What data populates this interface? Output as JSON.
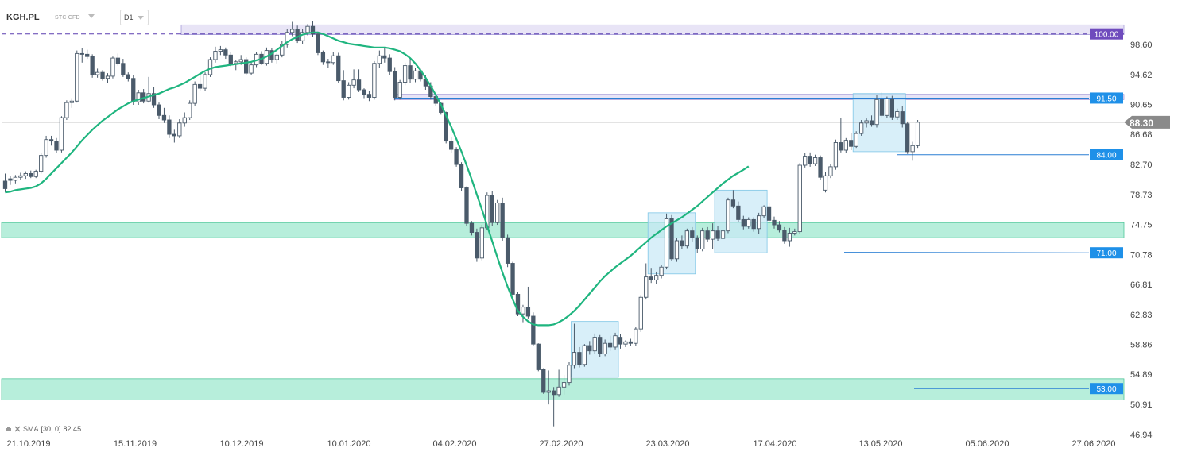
{
  "header": {
    "symbol": "KGH.PL",
    "instrument_type": "STC CFD",
    "timeframe": "D1"
  },
  "indicator": {
    "name": "SMA",
    "params": "[30, 0]",
    "value": "82.45"
  },
  "colors": {
    "candle_up_body": "#ffffff",
    "candle_down_body": "#4a5a6a",
    "candle_border": "#4a5a6a",
    "sma_line": "#1fb57f",
    "support_zone": "#b7eedb",
    "resistance_zone": "#e8e4f6",
    "level_label": "#1e90e8",
    "top_label": "#6f4bbd",
    "price_label": "#8a8a8a",
    "consolidation_box": "#c8e8f6"
  },
  "chart_data": {
    "type": "candlestick",
    "y_ticks": [
      "98.60",
      "94.62",
      "90.65",
      "86.68",
      "82.70",
      "78.73",
      "74.75",
      "70.78",
      "66.81",
      "62.83",
      "58.86",
      "54.89",
      "50.91",
      "46.94"
    ],
    "x_ticks": [
      "21.10.2019",
      "15.11.2019",
      "10.12.2019",
      "10.01.2020",
      "04.02.2020",
      "27.02.2020",
      "23.03.2020",
      "17.04.2020",
      "13.05.2020",
      "05.06.2020",
      "27.06.2020"
    ],
    "current_price": "88.30",
    "levels": [
      {
        "label": "100.00",
        "value": 100.0
      },
      {
        "label": "91.50",
        "value": 91.5
      },
      {
        "label": "84.00",
        "value": 84.0
      },
      {
        "label": "71.00",
        "value": 71.0
      },
      {
        "label": "53.00",
        "value": 53.0
      }
    ],
    "zones": [
      {
        "kind": "resistance",
        "from": 99.9,
        "to": 101.2
      },
      {
        "kind": "resistance",
        "from": 91.3,
        "to": 92.0
      },
      {
        "kind": "support",
        "from": 73.0,
        "to": 75.0
      },
      {
        "kind": "support",
        "from": 51.5,
        "to": 54.3
      }
    ],
    "consolidation_boxes": [
      {
        "from_index": 111,
        "to_index": 119,
        "high": 61.9,
        "low": 54.5
      },
      {
        "from_index": 126,
        "to_index": 134,
        "high": 76.3,
        "low": 68.2
      },
      {
        "from_index": 139,
        "to_index": 148,
        "high": 79.3,
        "low": 71.0
      },
      {
        "from_index": 166,
        "to_index": 175,
        "high": 92.1,
        "low": 84.4
      }
    ],
    "candles": [
      [
        80.5,
        81.5,
        79.0,
        79.5
      ],
      [
        80.8,
        81.2,
        80.0,
        80.6
      ],
      [
        80.6,
        81.3,
        80.2,
        81.0
      ],
      [
        81.0,
        81.6,
        80.6,
        81.2
      ],
      [
        81.2,
        81.8,
        80.8,
        81.5
      ],
      [
        81.5,
        81.9,
        80.9,
        81.1
      ],
      [
        81.1,
        82.0,
        80.9,
        81.8
      ],
      [
        81.8,
        84.2,
        81.5,
        83.9
      ],
      [
        83.9,
        86.5,
        83.6,
        86.0
      ],
      [
        86.0,
        86.5,
        85.2,
        85.8
      ],
      [
        85.8,
        86.2,
        84.2,
        84.6
      ],
      [
        84.6,
        89.1,
        84.3,
        88.9
      ],
      [
        88.9,
        91.2,
        88.6,
        90.9
      ],
      [
        90.9,
        91.5,
        90.2,
        91.1
      ],
      [
        91.1,
        97.8,
        90.9,
        97.4
      ],
      [
        97.4,
        98.1,
        96.2,
        97.3
      ],
      [
        97.3,
        97.9,
        96.7,
        97.0
      ],
      [
        97.0,
        97.3,
        94.2,
        94.6
      ],
      [
        94.6,
        95.4,
        94.2,
        94.9
      ],
      [
        94.9,
        95.2,
        93.8,
        94.1
      ],
      [
        94.1,
        94.8,
        93.5,
        94.4
      ],
      [
        94.4,
        97.0,
        94.1,
        96.8
      ],
      [
        96.8,
        97.4,
        95.8,
        96.1
      ],
      [
        96.1,
        96.7,
        94.3,
        94.6
      ],
      [
        94.6,
        94.9,
        93.7,
        94.1
      ],
      [
        94.1,
        94.5,
        90.6,
        91.0
      ],
      [
        91.0,
        92.6,
        90.6,
        92.2
      ],
      [
        92.2,
        92.7,
        90.8,
        91.1
      ],
      [
        91.1,
        94.3,
        90.9,
        92.1
      ],
      [
        92.1,
        93.0,
        90.2,
        90.6
      ],
      [
        90.6,
        90.9,
        88.7,
        89.2
      ],
      [
        89.2,
        90.2,
        88.2,
        88.6
      ],
      [
        88.6,
        89.2,
        86.2,
        86.7
      ],
      [
        86.7,
        87.3,
        85.6,
        86.5
      ],
      [
        86.5,
        88.7,
        86.2,
        88.2
      ],
      [
        88.2,
        89.6,
        87.7,
        88.9
      ],
      [
        88.9,
        91.2,
        88.6,
        90.8
      ],
      [
        90.8,
        93.7,
        90.5,
        93.3
      ],
      [
        93.3,
        94.5,
        92.5,
        92.8
      ],
      [
        92.8,
        94.9,
        92.4,
        94.6
      ],
      [
        94.6,
        96.9,
        94.3,
        96.6
      ],
      [
        96.6,
        98.3,
        96.2,
        97.7
      ],
      [
        97.7,
        98.4,
        97.2,
        97.9
      ],
      [
        97.9,
        98.2,
        96.7,
        97.2
      ],
      [
        97.2,
        97.6,
        95.7,
        96.1
      ],
      [
        96.1,
        96.6,
        95.2,
        96.3
      ],
      [
        96.3,
        97.2,
        95.9,
        96.6
      ],
      [
        96.6,
        96.9,
        94.5,
        94.8
      ],
      [
        94.8,
        96.3,
        94.6,
        95.9
      ],
      [
        95.9,
        97.6,
        95.6,
        97.3
      ],
      [
        97.3,
        97.7,
        95.9,
        96.1
      ],
      [
        96.1,
        98.2,
        95.8,
        97.8
      ],
      [
        97.8,
        98.1,
        96.2,
        96.6
      ],
      [
        96.6,
        97.4,
        96.1,
        97.2
      ],
      [
        97.2,
        99.1,
        96.9,
        98.6
      ],
      [
        98.6,
        100.6,
        98.2,
        100.2
      ],
      [
        100.2,
        101.6,
        99.7,
        100.6
      ],
      [
        100.6,
        101.1,
        98.8,
        99.1
      ],
      [
        99.1,
        100.6,
        98.7,
        100.2
      ],
      [
        100.2,
        101.3,
        99.8,
        101.0
      ],
      [
        101.0,
        101.7,
        99.6,
        100.0
      ],
      [
        100.0,
        100.3,
        97.2,
        97.5
      ],
      [
        97.5,
        97.8,
        95.9,
        96.3
      ],
      [
        96.3,
        96.7,
        95.5,
        96.2
      ],
      [
        96.2,
        97.6,
        95.9,
        97.1
      ],
      [
        97.1,
        97.5,
        93.5,
        93.8
      ],
      [
        93.8,
        95.2,
        91.2,
        91.6
      ],
      [
        91.6,
        93.6,
        91.3,
        93.2
      ],
      [
        93.2,
        95.3,
        92.8,
        93.9
      ],
      [
        93.9,
        95.3,
        92.3,
        92.6
      ],
      [
        92.6,
        92.8,
        91.5,
        92.0
      ],
      [
        92.0,
        92.4,
        91.1,
        91.6
      ],
      [
        91.6,
        96.4,
        91.3,
        96.1
      ],
      [
        96.1,
        97.8,
        95.5,
        97.1
      ],
      [
        97.1,
        98.2,
        96.2,
        96.8
      ],
      [
        96.8,
        97.3,
        94.6,
        95.0
      ],
      [
        95.0,
        95.6,
        91.2,
        91.6
      ],
      [
        91.6,
        93.9,
        91.3,
        93.6
      ],
      [
        93.6,
        96.2,
        93.2,
        95.8
      ],
      [
        95.8,
        96.7,
        93.5,
        94.0
      ],
      [
        94.0,
        95.5,
        93.6,
        95.1
      ],
      [
        95.1,
        95.4,
        93.7,
        94.0
      ],
      [
        94.0,
        94.5,
        92.6,
        93.1
      ],
      [
        93.1,
        93.6,
        91.3,
        91.7
      ],
      [
        91.7,
        91.9,
        90.5,
        90.8
      ],
      [
        90.8,
        91.0,
        89.3,
        89.6
      ],
      [
        89.6,
        89.7,
        85.5,
        85.8
      ],
      [
        85.8,
        86.3,
        84.2,
        84.7
      ],
      [
        84.7,
        85.0,
        82.4,
        82.7
      ],
      [
        82.7,
        83.0,
        79.2,
        79.6
      ],
      [
        79.6,
        79.8,
        74.6,
        74.9
      ],
      [
        74.9,
        75.2,
        73.3,
        73.7
      ],
      [
        73.7,
        74.2,
        69.8,
        70.3
      ],
      [
        70.3,
        74.7,
        70.0,
        74.3
      ],
      [
        74.3,
        79.0,
        74.0,
        78.6
      ],
      [
        78.6,
        79.2,
        74.6,
        75.0
      ],
      [
        75.0,
        78.0,
        74.7,
        77.6
      ],
      [
        77.6,
        78.3,
        72.6,
        73.0
      ],
      [
        73.0,
        73.4,
        69.1,
        69.6
      ],
      [
        69.6,
        69.8,
        65.2,
        65.5
      ],
      [
        65.5,
        65.8,
        62.6,
        62.9
      ],
      [
        62.9,
        64.1,
        61.8,
        63.8
      ],
      [
        63.8,
        66.5,
        62.3,
        62.6
      ],
      [
        62.6,
        63.1,
        58.6,
        58.9
      ],
      [
        58.9,
        59.0,
        55.3,
        55.5
      ],
      [
        55.5,
        55.7,
        52.3,
        52.5
      ],
      [
        52.5,
        55.4,
        50.9,
        52.7
      ],
      [
        52.7,
        53.2,
        48.0,
        52.2
      ],
      [
        52.2,
        55.5,
        51.9,
        53.2
      ],
      [
        53.2,
        54.8,
        52.2,
        53.8
      ],
      [
        53.8,
        56.5,
        53.4,
        56.1
      ],
      [
        56.1,
        61.6,
        55.7,
        57.8
      ],
      [
        57.8,
        58.5,
        55.8,
        56.2
      ],
      [
        56.2,
        58.9,
        55.9,
        58.7
      ],
      [
        58.7,
        59.3,
        57.5,
        58.0
      ],
      [
        58.0,
        60.3,
        57.6,
        59.8
      ],
      [
        59.8,
        60.1,
        57.2,
        57.6
      ],
      [
        57.6,
        59.5,
        57.3,
        59.0
      ],
      [
        59.0,
        60.0,
        58.0,
        58.5
      ],
      [
        58.5,
        60.4,
        58.2,
        60.0
      ],
      [
        59.8,
        60.2,
        58.3,
        58.9
      ],
      [
        58.9,
        59.4,
        58.5,
        59.2
      ],
      [
        59.2,
        59.6,
        58.6,
        59.0
      ],
      [
        59.0,
        61.2,
        58.6,
        60.9
      ],
      [
        60.9,
        65.4,
        60.5,
        65.1
      ],
      [
        65.1,
        69.6,
        64.8,
        67.8
      ],
      [
        67.8,
        69.0,
        67.0,
        67.4
      ],
      [
        67.4,
        68.5,
        66.9,
        68.0
      ],
      [
        68.0,
        69.4,
        67.6,
        69.1
      ],
      [
        69.1,
        76.2,
        68.8,
        75.5
      ],
      [
        75.5,
        76.0,
        69.9,
        70.2
      ],
      [
        70.2,
        73.0,
        69.8,
        72.6
      ],
      [
        72.6,
        73.3,
        71.5,
        71.9
      ],
      [
        71.9,
        74.2,
        71.6,
        73.9
      ],
      [
        73.9,
        74.4,
        72.5,
        73.0
      ],
      [
        73.0,
        73.3,
        71.0,
        71.5
      ],
      [
        71.5,
        74.3,
        71.2,
        73.9
      ],
      [
        73.9,
        74.4,
        72.4,
        72.8
      ],
      [
        72.8,
        74.9,
        71.5,
        73.9
      ],
      [
        73.9,
        74.6,
        72.6,
        72.9
      ],
      [
        72.9,
        74.3,
        72.6,
        73.9
      ],
      [
        73.9,
        78.3,
        73.6,
        78.0
      ],
      [
        78.0,
        79.3,
        76.9,
        77.2
      ],
      [
        77.2,
        77.8,
        75.1,
        75.4
      ],
      [
        75.4,
        75.9,
        74.1,
        74.5
      ],
      [
        74.5,
        75.7,
        74.2,
        75.4
      ],
      [
        75.4,
        75.7,
        73.8,
        74.2
      ],
      [
        74.2,
        76.3,
        73.5,
        75.9
      ],
      [
        75.9,
        77.3,
        75.6,
        77.1
      ],
      [
        77.1,
        77.6,
        74.9,
        75.3
      ],
      [
        75.3,
        75.8,
        74.2,
        74.7
      ],
      [
        74.7,
        75.2,
        73.7,
        74.0
      ],
      [
        74.0,
        74.4,
        72.2,
        72.6
      ],
      [
        72.6,
        74.3,
        71.8,
        73.6
      ],
      [
        73.6,
        74.2,
        73.3,
        73.8
      ],
      [
        73.8,
        82.9,
        73.5,
        82.6
      ],
      [
        82.6,
        84.2,
        82.3,
        83.8
      ],
      [
        83.8,
        84.3,
        82.4,
        82.8
      ],
      [
        82.8,
        84.0,
        82.5,
        83.6
      ],
      [
        83.6,
        83.9,
        80.6,
        81.0
      ],
      [
        79.3,
        81.7,
        79.0,
        81.2
      ],
      [
        81.2,
        82.8,
        80.9,
        82.4
      ],
      [
        82.4,
        86.0,
        82.0,
        85.6
      ],
      [
        85.6,
        88.9,
        84.3,
        84.6
      ],
      [
        84.6,
        86.2,
        84.2,
        85.9
      ],
      [
        85.9,
        86.9,
        84.6,
        85.1
      ],
      [
        85.1,
        87.1,
        84.9,
        86.8
      ],
      [
        86.8,
        88.6,
        86.5,
        88.2
      ],
      [
        88.2,
        88.8,
        87.6,
        88.5
      ],
      [
        88.5,
        89.2,
        87.7,
        88.0
      ],
      [
        88.0,
        91.9,
        87.6,
        91.3
      ],
      [
        91.3,
        92.3,
        88.8,
        89.2
      ],
      [
        89.2,
        91.7,
        88.9,
        91.4
      ],
      [
        91.4,
        91.8,
        88.6,
        89.0
      ],
      [
        89.0,
        90.1,
        88.6,
        89.7
      ],
      [
        89.7,
        90.4,
        87.6,
        88.1
      ],
      [
        88.1,
        88.4,
        84.1,
        84.4
      ],
      [
        84.4,
        85.7,
        83.2,
        85.2
      ],
      [
        85.2,
        88.6,
        84.9,
        88.3
      ]
    ],
    "sma": [
      79.0,
      79.1,
      79.3,
      79.4,
      79.5,
      79.6,
      79.8,
      80.2,
      80.8,
      81.5,
      82.2,
      82.9,
      83.6,
      84.3,
      85.1,
      85.9,
      86.6,
      87.3,
      87.9,
      88.5,
      89.0,
      89.5,
      90.0,
      90.4,
      90.8,
      91.1,
      91.3,
      91.5,
      91.7,
      91.9,
      92.1,
      92.4,
      92.7,
      92.9,
      93.2,
      93.5,
      93.9,
      94.3,
      94.7,
      95.1,
      95.4,
      95.6,
      95.7,
      95.8,
      95.9,
      96.0,
      96.1,
      96.2,
      96.3,
      96.5,
      96.7,
      97.0,
      97.4,
      97.9,
      98.4,
      98.9,
      99.3,
      99.6,
      99.9,
      100.1,
      100.2,
      100.2,
      100.0,
      99.7,
      99.4,
      99.1,
      98.9,
      98.7,
      98.6,
      98.5,
      98.4,
      98.3,
      98.2,
      98.2,
      98.2,
      98.1,
      97.9,
      97.7,
      97.3,
      96.8,
      96.1,
      95.2,
      94.2,
      93.1,
      91.9,
      90.6,
      89.2,
      87.7,
      86.1,
      84.4,
      82.6,
      80.7,
      78.7,
      76.7,
      74.6,
      72.5,
      70.4,
      68.4,
      66.5,
      64.8,
      63.3,
      62.5,
      61.9,
      61.5,
      61.4,
      61.4,
      61.4,
      61.5,
      61.8,
      62.2,
      62.7,
      63.3,
      64.0,
      64.8,
      65.6,
      66.4,
      67.2,
      67.9,
      68.5,
      69.1,
      69.6,
      70.1,
      70.6,
      71.2,
      71.8,
      72.4,
      73.0,
      73.5,
      74.0,
      74.5,
      74.9,
      75.3,
      75.7,
      76.2,
      76.7,
      77.2,
      77.8,
      78.4,
      79.0,
      79.6,
      80.2,
      80.7,
      81.2,
      81.6,
      82.0,
      82.45
    ]
  }
}
